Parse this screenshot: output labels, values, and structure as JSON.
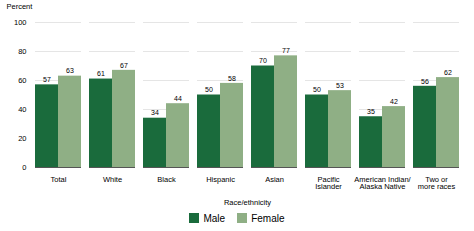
{
  "chart_data": {
    "type": "bar",
    "categories": [
      "Total",
      "White",
      "Black",
      "Hispanic",
      "Asian",
      "Pacific\nIslander",
      "American Indian/\nAlaska Native",
      "Two or\nmore races"
    ],
    "series": [
      {
        "name": "Male",
        "color": "#1a6b3c",
        "values": [
          57,
          61,
          34,
          50,
          70,
          50,
          35,
          56
        ]
      },
      {
        "name": "Female",
        "color": "#8faf85",
        "values": [
          63,
          67,
          44,
          58,
          77,
          53,
          42,
          62
        ]
      }
    ],
    "xlabel": "Race/ethnicity",
    "ylabel": "Percent",
    "ylim": [
      0,
      100
    ],
    "yticks": [
      0,
      20,
      40,
      60,
      80,
      100
    ],
    "grid": true,
    "data_labels": true,
    "legend": "bottom"
  }
}
